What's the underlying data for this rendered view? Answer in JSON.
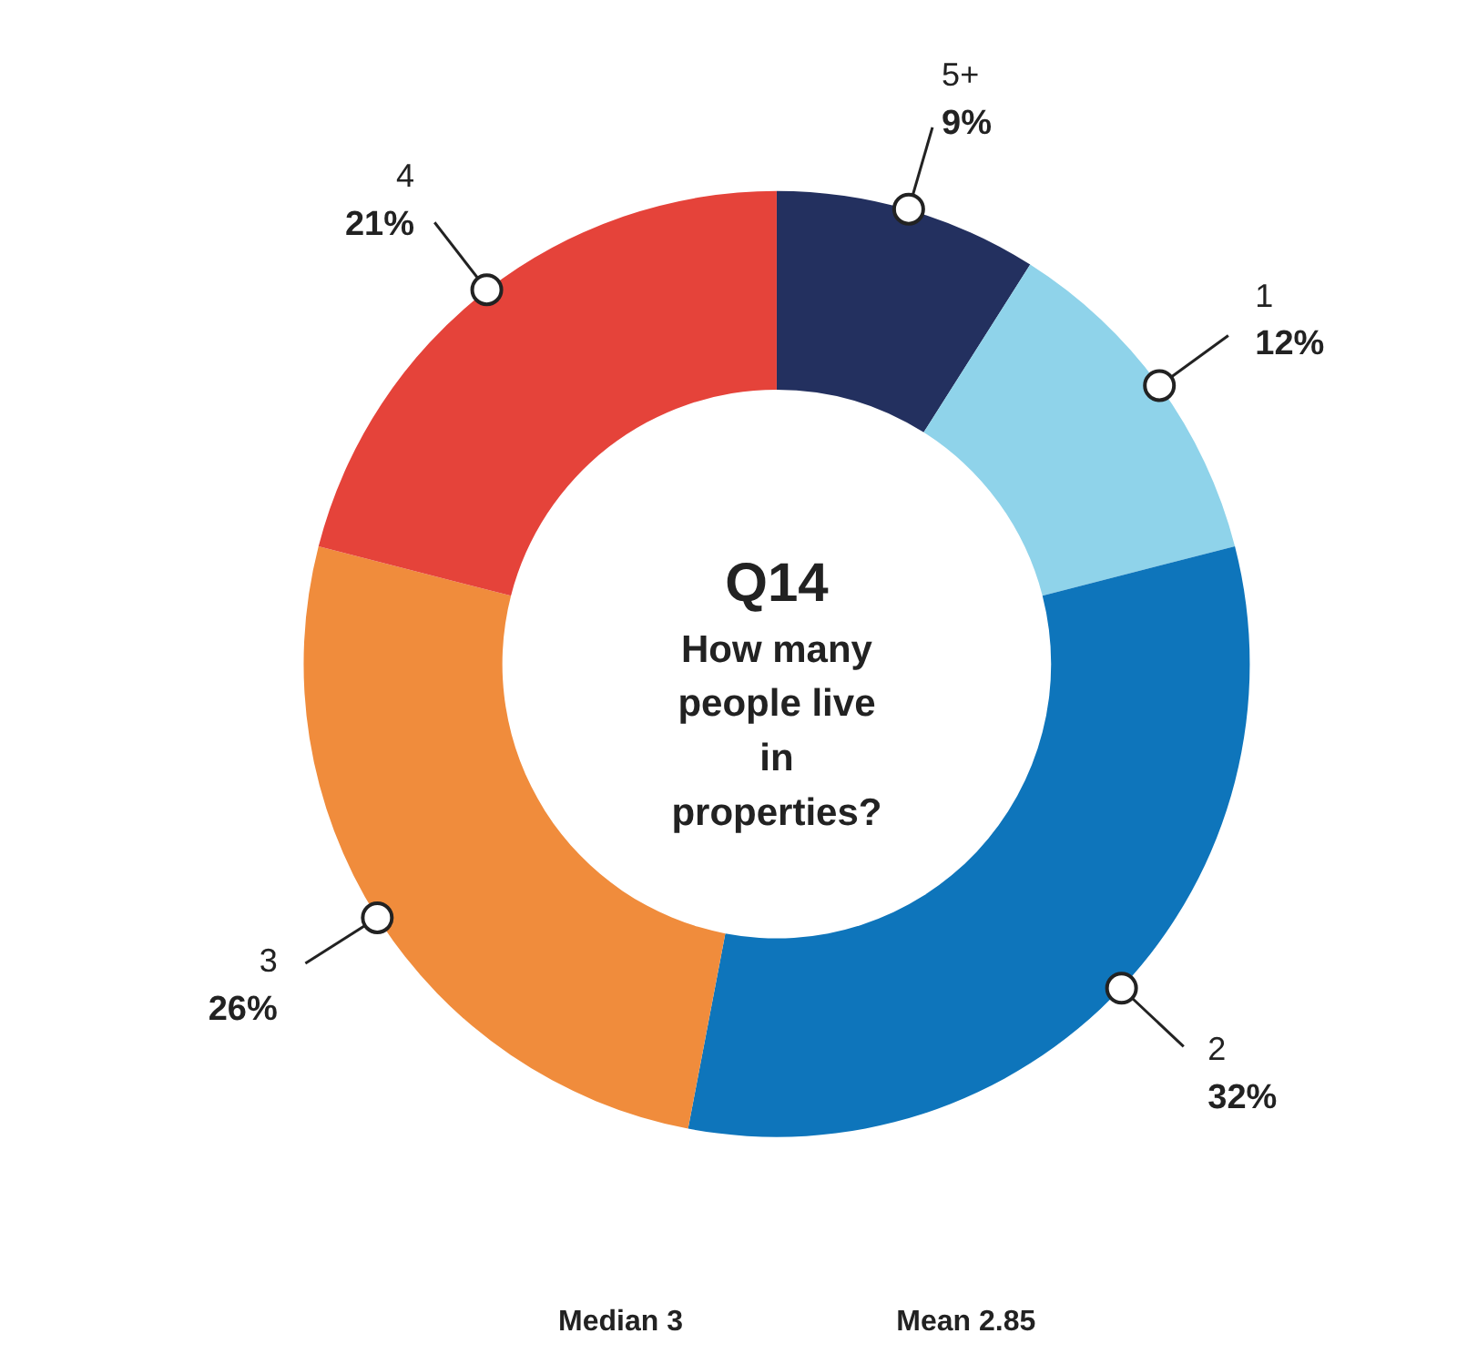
{
  "chart_data": {
    "type": "donut",
    "title": "Q14",
    "subtitle": "How many people live in properties?",
    "categories": [
      "5+",
      "1",
      "2",
      "3",
      "4"
    ],
    "values": [
      9,
      12,
      32,
      26,
      21
    ],
    "value_labels": [
      "9%",
      "12%",
      "32%",
      "26%",
      "21%"
    ],
    "colors": [
      "#23305f",
      "#8fd3ea",
      "#0e75bb",
      "#f08c3c",
      "#e5433a"
    ],
    "annotations": [
      "Median 3",
      "Mean 2.85"
    ]
  }
}
